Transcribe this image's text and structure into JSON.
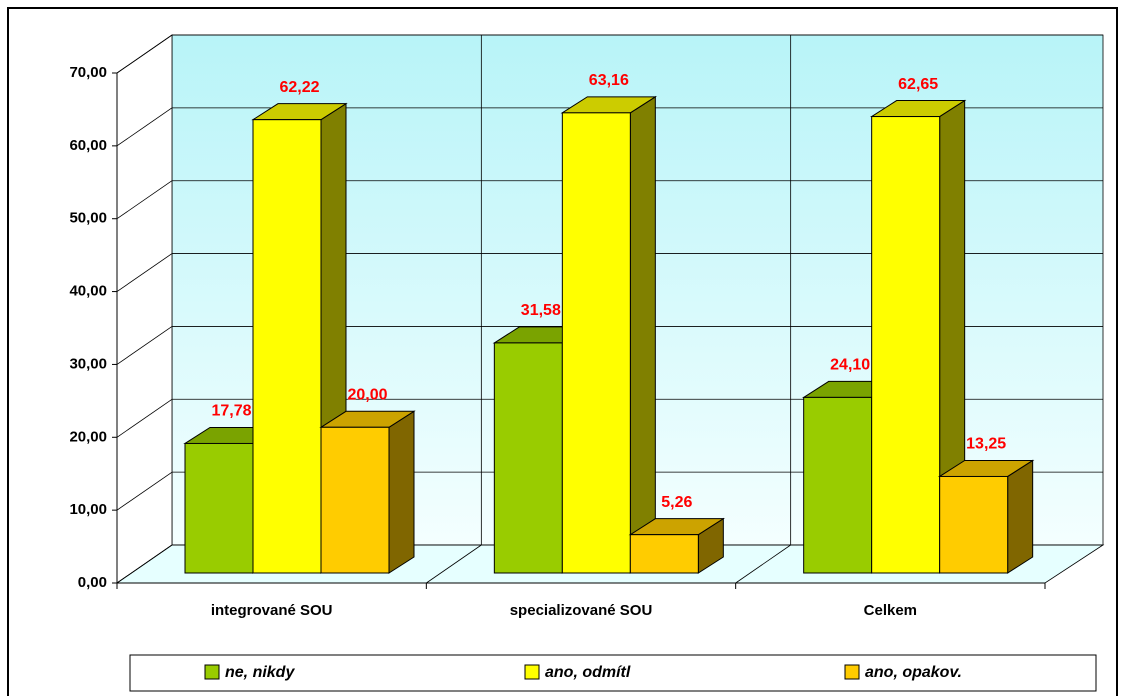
{
  "chart_data": {
    "type": "bar3d",
    "categories": [
      "integrované SOU",
      "specializované SOU",
      "Celkem"
    ],
    "series": [
      {
        "name": "ne, nikdy",
        "color": "#99cc00",
        "values": [
          17.78,
          31.58,
          24.1
        ],
        "value_labels": [
          "17,78",
          "31,58",
          "24,10"
        ]
      },
      {
        "name": "ano, odmítl",
        "color": "#ffff00",
        "values": [
          62.22,
          63.16,
          62.65
        ],
        "value_labels": [
          "62,22",
          "63,16",
          "62,65"
        ]
      },
      {
        "name": "ano, opakov.",
        "color": "#ffcc00",
        "values": [
          20.0,
          5.26,
          13.25
        ],
        "value_labels": [
          "20,00",
          "5,26",
          "13,25"
        ]
      }
    ],
    "ylim": [
      0,
      70
    ],
    "yticks": [
      {
        "value": 0,
        "label": "0,00"
      },
      {
        "value": 10,
        "label": "10,00"
      },
      {
        "value": 20,
        "label": "20,00"
      },
      {
        "value": 30,
        "label": "30,00"
      },
      {
        "value": 40,
        "label": "40,00"
      },
      {
        "value": 50,
        "label": "50,00"
      },
      {
        "value": 60,
        "label": "60,00"
      },
      {
        "value": 70,
        "label": "70,00"
      }
    ],
    "grid": true,
    "legend": "bottom"
  }
}
